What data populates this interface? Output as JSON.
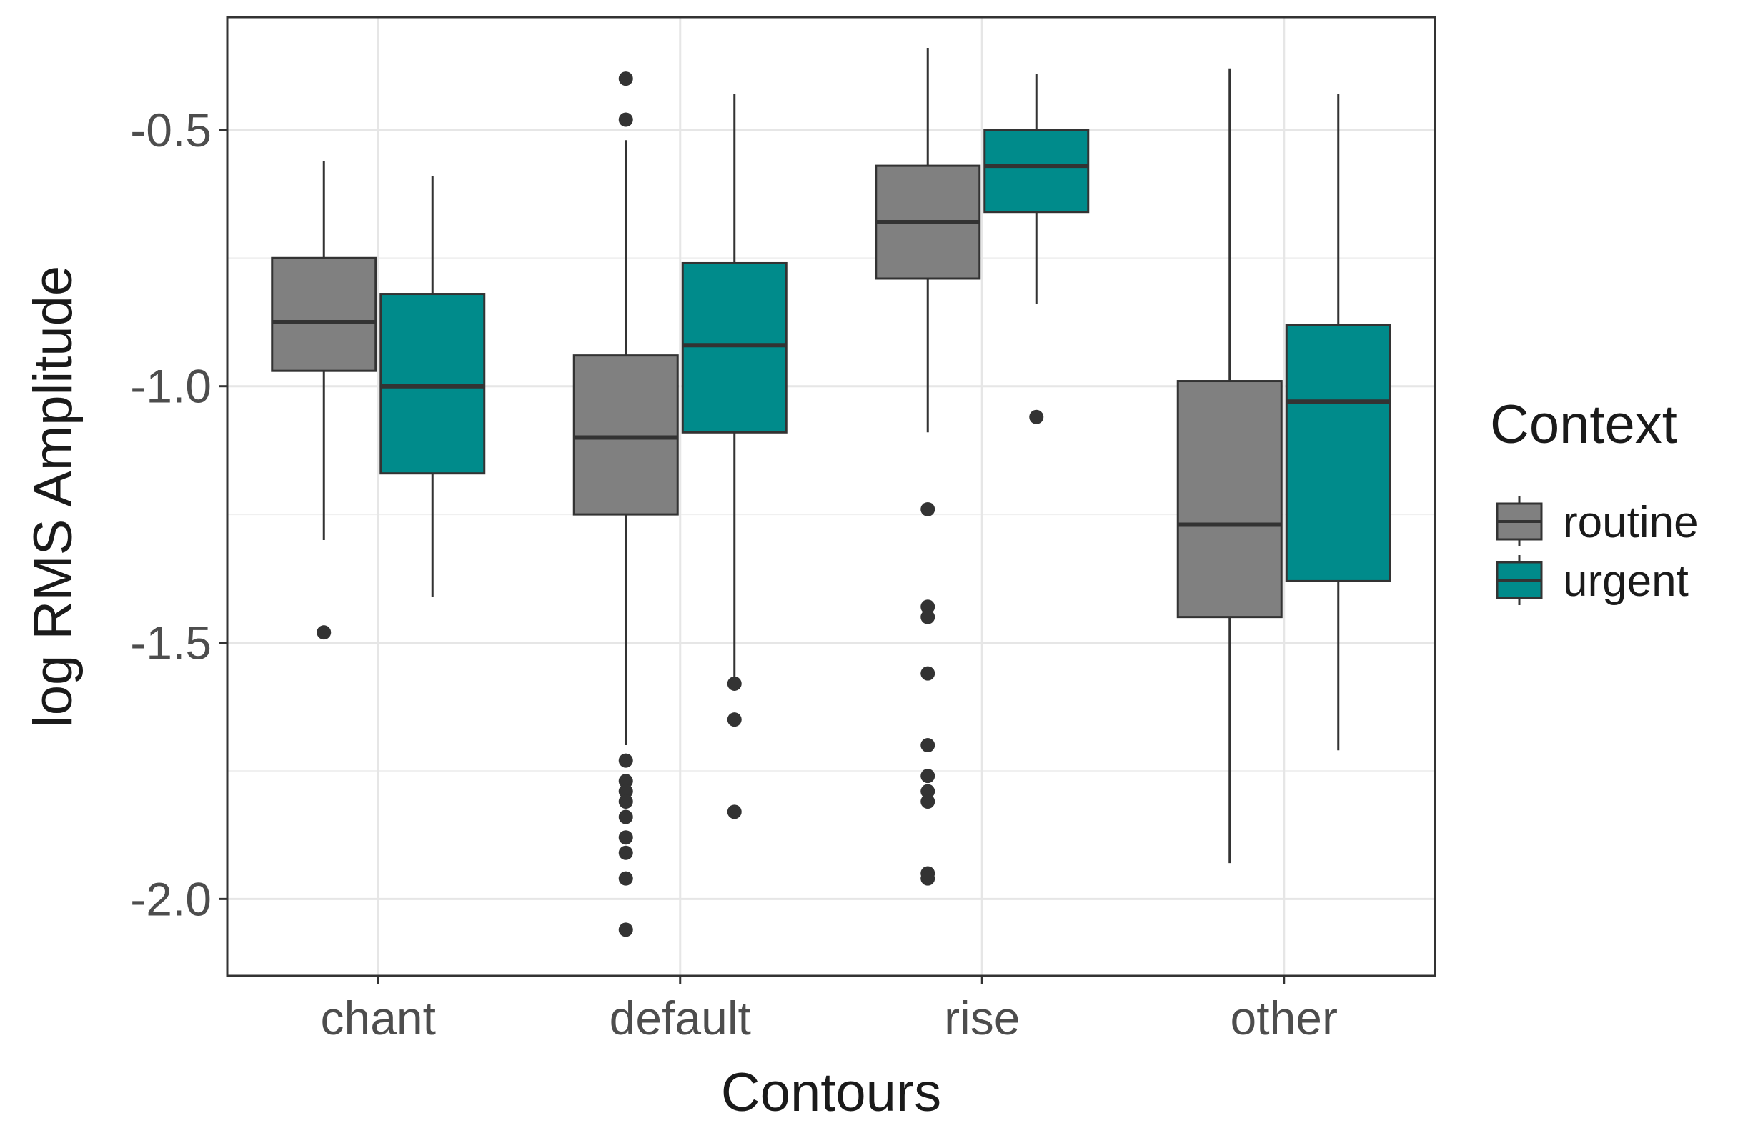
{
  "chart_data": {
    "type": "boxplot",
    "title": "",
    "xlabel": "Contours",
    "ylabel": "log RMS Amplitude",
    "categories": [
      "chant",
      "default",
      "rise",
      "other"
    ],
    "ylim": [
      -2.15,
      -0.28
    ],
    "yticks": [
      -2.0,
      -1.5,
      -1.0,
      -0.5
    ],
    "ytick_labels": [
      "-2.0",
      "-1.5",
      "-1.0",
      "-0.5"
    ],
    "grid": true,
    "legend": {
      "title": "Context",
      "position": "right",
      "entries": [
        "routine",
        "urgent"
      ]
    },
    "series": [
      {
        "name": "routine",
        "color": "#808080",
        "boxes": [
          {
            "category": "chant",
            "whisker_low": -1.3,
            "q1": -0.97,
            "median": -0.875,
            "q3": -0.75,
            "whisker_high": -0.56,
            "outliers": [
              -1.48
            ]
          },
          {
            "category": "default",
            "whisker_low": -1.7,
            "q1": -1.25,
            "median": -1.1,
            "q3": -0.94,
            "whisker_high": -0.52,
            "outliers": [
              -0.4,
              -0.48,
              -1.73,
              -1.77,
              -1.79,
              -1.81,
              -1.84,
              -1.88,
              -1.91,
              -1.96,
              -2.06
            ]
          },
          {
            "category": "rise",
            "whisker_low": -1.09,
            "q1": -0.79,
            "median": -0.68,
            "q3": -0.57,
            "whisker_high": -0.34,
            "outliers": [
              -1.24,
              -1.43,
              -1.45,
              -1.56,
              -1.7,
              -1.76,
              -1.79,
              -1.81,
              -1.95,
              -1.96
            ]
          },
          {
            "category": "other",
            "whisker_low": -1.93,
            "q1": -1.45,
            "median": -1.27,
            "q3": -0.99,
            "whisker_high": -0.38,
            "outliers": []
          }
        ]
      },
      {
        "name": "urgent",
        "color": "#008b8b",
        "boxes": [
          {
            "category": "chant",
            "whisker_low": -1.41,
            "q1": -1.17,
            "median": -1.0,
            "q3": -0.82,
            "whisker_high": -0.59,
            "outliers": []
          },
          {
            "category": "default",
            "whisker_low": -1.57,
            "q1": -1.09,
            "median": -0.92,
            "q3": -0.76,
            "whisker_high": -0.43,
            "outliers": [
              -1.58,
              -1.65,
              -1.83
            ]
          },
          {
            "category": "rise",
            "whisker_low": -0.84,
            "q1": -0.66,
            "median": -0.57,
            "q3": -0.5,
            "whisker_high": -0.39,
            "outliers": [
              -1.06
            ]
          },
          {
            "category": "other",
            "whisker_low": -1.71,
            "q1": -1.38,
            "median": -1.03,
            "q3": -0.88,
            "whisker_high": -0.43,
            "outliers": []
          }
        ]
      }
    ]
  }
}
